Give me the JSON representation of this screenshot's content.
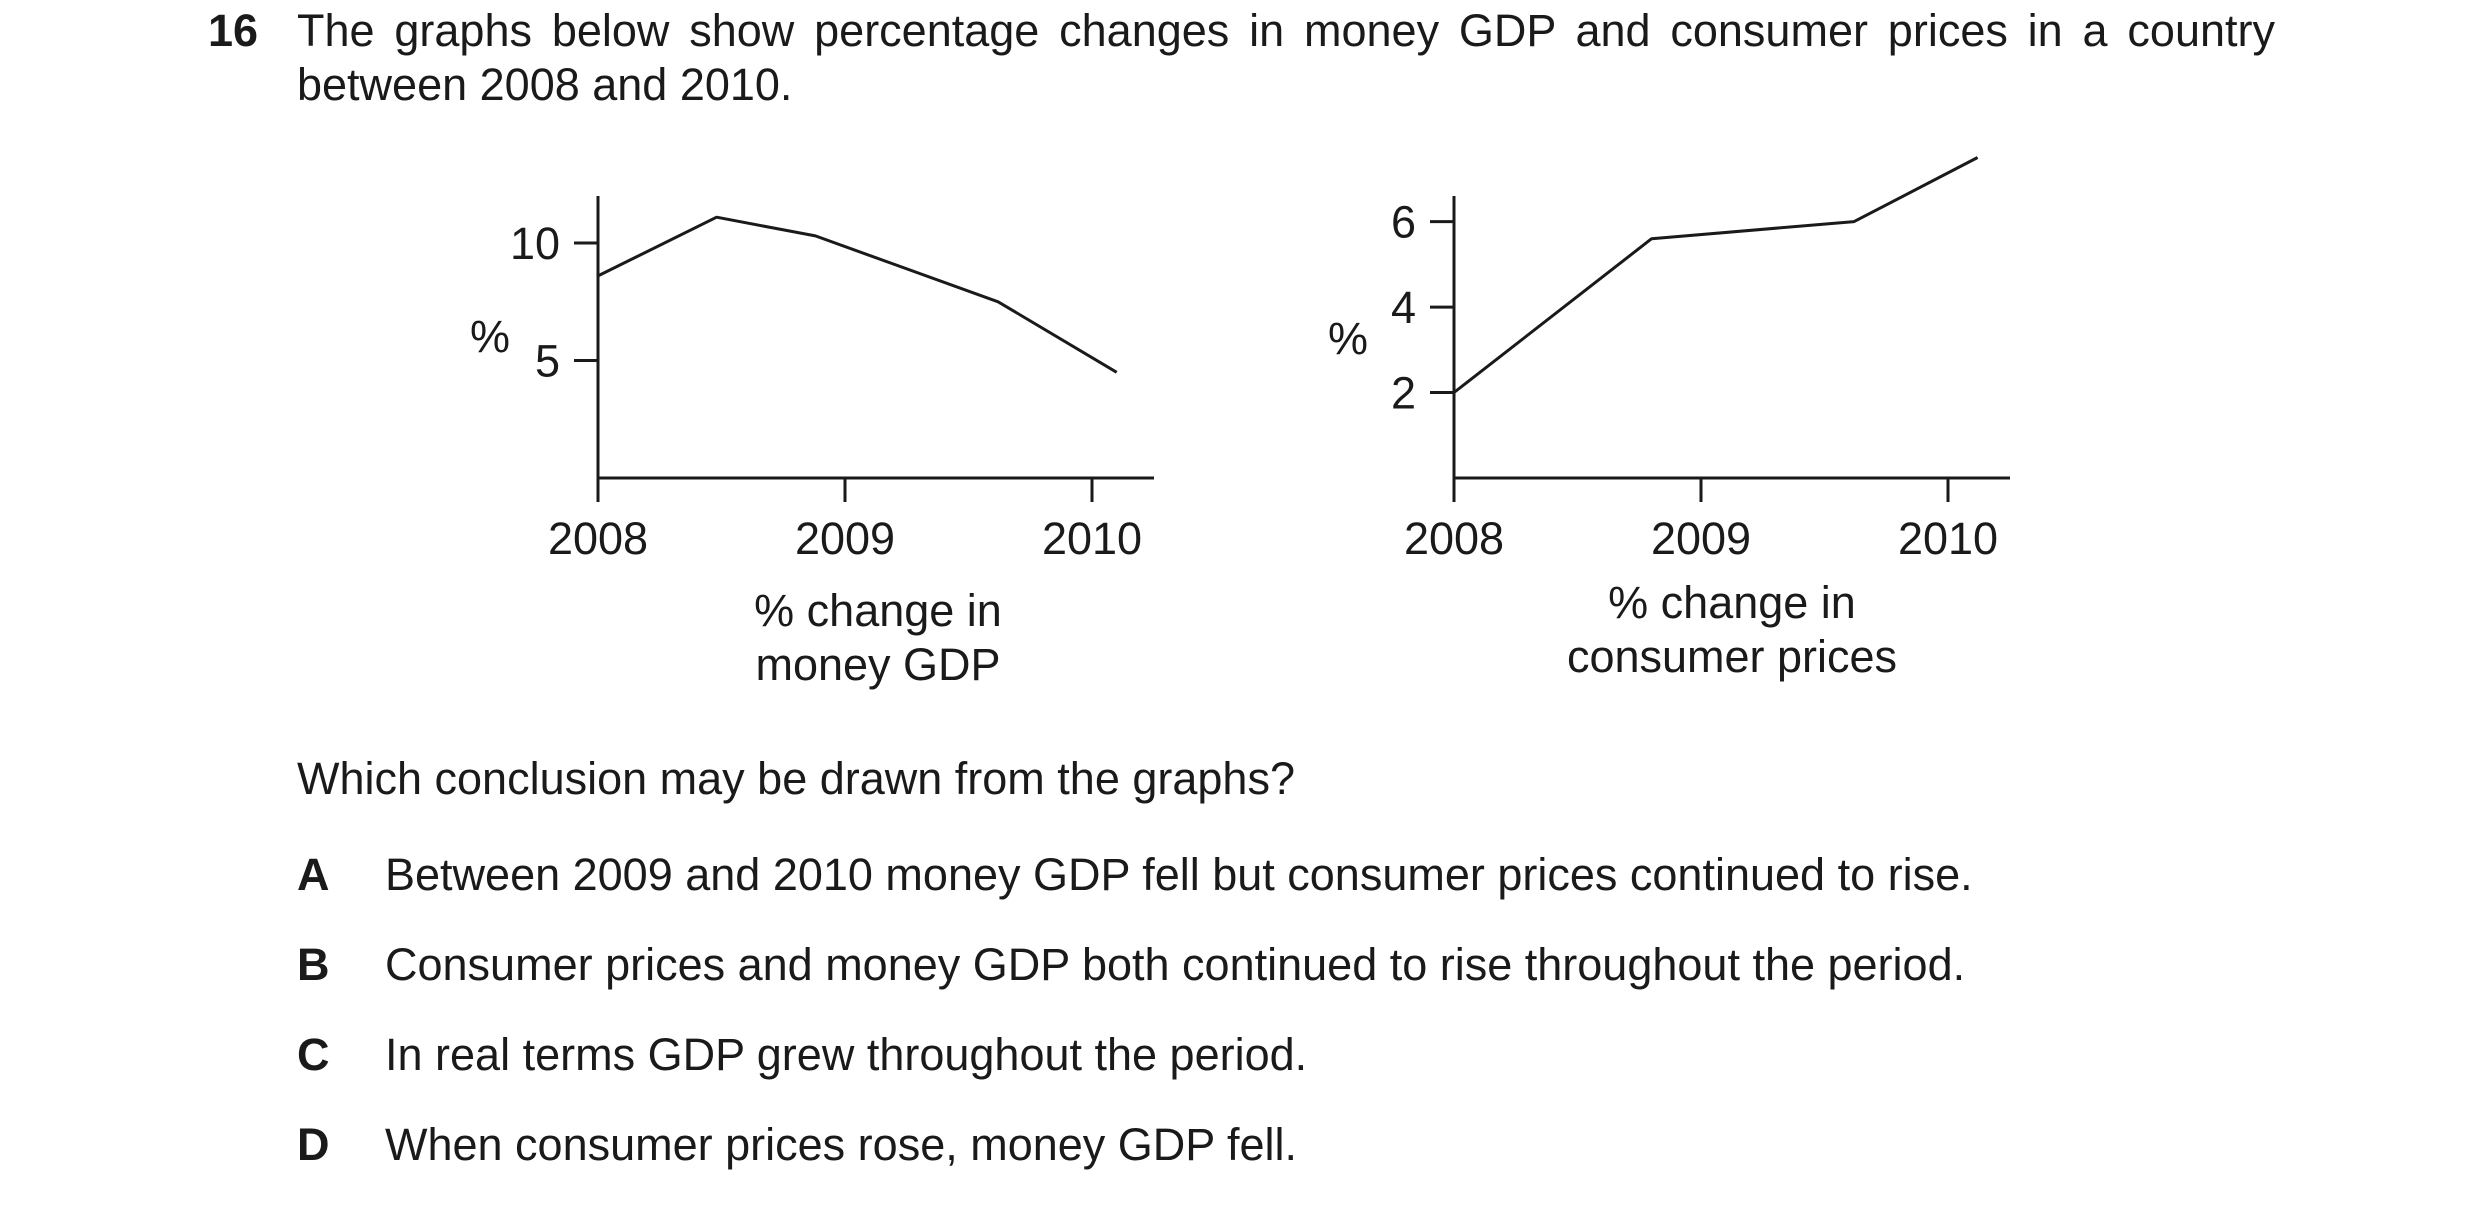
{
  "question": {
    "number": "16",
    "stem": "The graphs below show percentage changes in money GDP and consumer prices in a country between 2008 and 2010.",
    "prompt": "Which conclusion may be drawn from the graphs?",
    "options": [
      {
        "letter": "A",
        "text": "Between 2009 and 2010 money GDP fell but consumer prices continued to rise."
      },
      {
        "letter": "B",
        "text": "Consumer prices and money GDP both continued to rise throughout the period."
      },
      {
        "letter": "C",
        "text": "In real terms GDP grew throughout the period."
      },
      {
        "letter": "D",
        "text": "When consumer prices rose, money GDP fell."
      }
    ]
  },
  "chart_data": [
    {
      "type": "line",
      "caption_lines": [
        "% change in",
        "money GDP"
      ],
      "ylabel": "%",
      "x_ticks": [
        2008,
        2009,
        2010
      ],
      "y_ticks": [
        5,
        10
      ],
      "xlim": [
        2008,
        2010.26
      ],
      "ylim": [
        0,
        12
      ],
      "grid": false,
      "points": [
        {
          "x": 2008.0,
          "y": 8.6
        },
        {
          "x": 2008.48,
          "y": 11.1
        },
        {
          "x": 2008.88,
          "y": 10.3
        },
        {
          "x": 2009.62,
          "y": 7.5
        },
        {
          "x": 2010.1,
          "y": 4.5
        }
      ]
    },
    {
      "type": "line",
      "caption_lines": [
        "% change in",
        "consumer prices"
      ],
      "ylabel": "%",
      "x_ticks": [
        2008,
        2009,
        2010
      ],
      "y_ticks": [
        2,
        4,
        6
      ],
      "xlim": [
        2008,
        2010.26
      ],
      "ylim": [
        0,
        6.6
      ],
      "grid": false,
      "points": [
        {
          "x": 2008.0,
          "y": 2.0
        },
        {
          "x": 2008.8,
          "y": 5.6
        },
        {
          "x": 2009.62,
          "y": 6.0
        },
        {
          "x": 2010.12,
          "y": 7.5
        }
      ]
    }
  ]
}
